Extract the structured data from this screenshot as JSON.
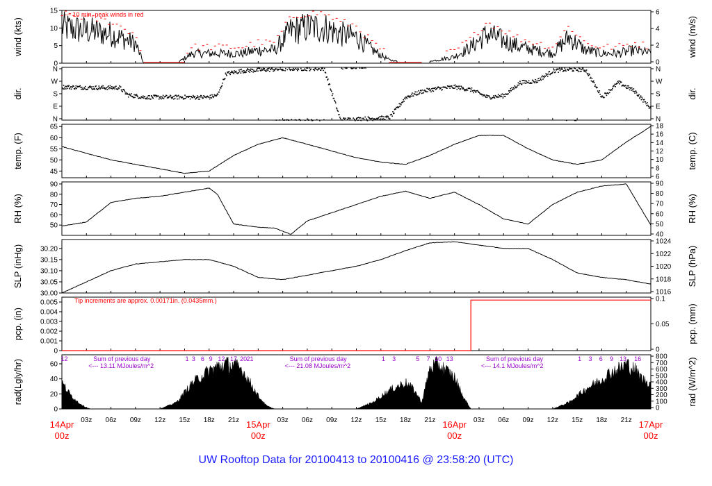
{
  "page": {
    "title": "UW Rooftop Data for 20100413  to  20100416 @ 23:58:20  (UTC)",
    "title_color": "#1a1aff"
  },
  "time_axis": {
    "hour_ticks": [
      "03z",
      "06z",
      "09z",
      "12z",
      "15z",
      "18z",
      "21z",
      "03z",
      "06z",
      "09z",
      "12z",
      "15z",
      "18z",
      "21z",
      "03z",
      "06z",
      "09z",
      "12z",
      "15z",
      "18z",
      "21z"
    ],
    "day_labels": [
      {
        "date": "14Apr",
        "hour": "00z"
      },
      {
        "date": "15Apr",
        "hour": "00z"
      },
      {
        "date": "16Apr",
        "hour": "00z"
      },
      {
        "date": "17Apr",
        "hour": "00z"
      }
    ],
    "day_label_color": "#ff0000"
  },
  "chart_data": [
    {
      "type": "line",
      "id": "wind",
      "ylabel_left": "wind (kts)",
      "ylabel_right": "wind (m/s)",
      "yticks_left": [
        0,
        5,
        10,
        15
      ],
      "yticks_right": [
        0,
        2,
        4,
        6
      ],
      "ylim": [
        0,
        15
      ],
      "annotation": "--- 10 min. peak winds in red",
      "annotation_color": "#ff0000",
      "x_hours": [
        0,
        3,
        6,
        9,
        10,
        12,
        14,
        16,
        18,
        20,
        22,
        24,
        26,
        28,
        30,
        32,
        34,
        36,
        38,
        40,
        42,
        44,
        46,
        48,
        50,
        52,
        54,
        56,
        58,
        60,
        62,
        64,
        66,
        68,
        70,
        72
      ],
      "values": [
        11,
        10,
        9,
        6,
        0,
        0,
        0,
        3,
        3,
        3,
        3,
        4,
        4,
        10,
        11,
        11,
        9,
        8,
        4,
        1,
        0,
        0,
        1,
        2,
        5,
        9,
        7,
        5,
        4,
        3,
        8,
        4,
        3,
        3,
        4,
        3
      ],
      "series_color": "#000000",
      "peak_color": "#ff0000"
    },
    {
      "type": "scatter",
      "id": "dir",
      "ylabel_left": "dir.",
      "ylabel_right": "dir.",
      "yticks_left": [
        "N",
        "E",
        "S",
        "W",
        "N"
      ],
      "yticks_right": [
        "N",
        "E",
        "S",
        "W",
        "N"
      ],
      "ylim": [
        0,
        360
      ],
      "x_hours": [
        0,
        4,
        7,
        8,
        10,
        12,
        14,
        16,
        18,
        19,
        20,
        21,
        22,
        24,
        26,
        28,
        30,
        32,
        34,
        36,
        38,
        40,
        42,
        44,
        46,
        48,
        50,
        52,
        54,
        56,
        58,
        60,
        62,
        64,
        66,
        68,
        70,
        72
      ],
      "values": [
        230,
        225,
        225,
        175,
        160,
        160,
        160,
        160,
        160,
        175,
        320,
        330,
        340,
        345,
        350,
        355,
        355,
        355,
        5,
        10,
        15,
        20,
        160,
        200,
        220,
        230,
        210,
        160,
        170,
        260,
        270,
        340,
        350,
        345,
        160,
        260,
        200,
        80
      ]
    },
    {
      "type": "line",
      "id": "temp",
      "ylabel_left": "temp. (F)",
      "ylabel_right": "temp. (C)",
      "yticks_left": [
        45,
        50,
        55,
        60,
        65
      ],
      "yticks_right": [
        6,
        8,
        10,
        12,
        14,
        16,
        18
      ],
      "ylim": [
        42,
        66
      ],
      "x_hours": [
        0,
        3,
        6,
        9,
        12,
        15,
        18,
        21,
        24,
        27,
        30,
        33,
        36,
        39,
        42,
        45,
        48,
        51,
        54,
        57,
        60,
        63,
        66,
        69,
        72
      ],
      "values": [
        56,
        53,
        50,
        48,
        46,
        44,
        45,
        52,
        57,
        60,
        57,
        54,
        51,
        49,
        48,
        52,
        57,
        61,
        61,
        55,
        50,
        48,
        50,
        58,
        65
      ],
      "series_color": "#000000"
    },
    {
      "type": "line",
      "id": "rh",
      "ylabel_left": "RH (%)",
      "ylabel_right": "RH (%)",
      "yticks_left": [
        50,
        60,
        70,
        80,
        90
      ],
      "yticks_right": [
        40,
        50,
        60,
        70,
        80,
        90
      ],
      "ylim": [
        40,
        92
      ],
      "x_hours": [
        0,
        3,
        6,
        9,
        12,
        15,
        18,
        19,
        21,
        24,
        26,
        28,
        30,
        33,
        36,
        39,
        42,
        45,
        48,
        51,
        54,
        57,
        60,
        61,
        63,
        66,
        69,
        72
      ],
      "values": [
        49,
        53,
        72,
        76,
        78,
        82,
        86,
        80,
        51,
        48,
        47,
        41,
        54,
        62,
        70,
        78,
        83,
        76,
        82,
        70,
        56,
        51,
        70,
        74,
        82,
        88,
        90,
        50
      ],
      "series_color": "#000000"
    },
    {
      "type": "line",
      "id": "slp",
      "ylabel_left": "SLP (inHg)",
      "ylabel_right": "SLP (hPa)",
      "yticks_left": [
        "30.00",
        "30.05",
        "30.10",
        "30.15",
        "30.20"
      ],
      "yticks_right": [
        1016,
        1018,
        1020,
        1022,
        1024
      ],
      "ylim": [
        30.0,
        30.24
      ],
      "x_hours": [
        0,
        3,
        6,
        9,
        12,
        15,
        18,
        21,
        24,
        27,
        30,
        33,
        36,
        39,
        42,
        45,
        48,
        51,
        54,
        57,
        60,
        63,
        66,
        69,
        72
      ],
      "values": [
        30.0,
        30.05,
        30.1,
        30.13,
        30.14,
        30.15,
        30.15,
        30.12,
        30.07,
        30.06,
        30.08,
        30.1,
        30.12,
        30.15,
        30.19,
        30.225,
        30.23,
        30.215,
        30.2,
        30.2,
        30.15,
        30.09,
        30.07,
        30.06,
        30.04
      ],
      "series_color": "#000000"
    },
    {
      "type": "line",
      "id": "pcp",
      "ylabel_left": "pcp. (in)",
      "ylabel_right": "pcp. (mm)",
      "yticks_left": [
        "0",
        "0.001",
        "0.002",
        "0.003",
        "0.004",
        "0.005"
      ],
      "yticks_right": [
        "0",
        "0.05",
        "0.1"
      ],
      "ylim": [
        0,
        0.0055
      ],
      "annotation": "Tip increments are approx. 0.00171in. (0.0435mm.)",
      "annotation_color": "#ff0000",
      "x_hours": [
        0,
        50,
        50,
        72
      ],
      "values": [
        0,
        0,
        0.0052,
        0.0052
      ],
      "series_color": "#ff0000"
    },
    {
      "type": "area",
      "id": "rad",
      "ylabel_left": "rad(Lgly/hr)",
      "ylabel_right": "rad (W/m^2)",
      "yticks_left": [
        0,
        20,
        40,
        60
      ],
      "yticks_right": [
        0,
        100,
        200,
        300,
        400,
        500,
        600,
        700,
        800
      ],
      "ylim": [
        0,
        72
      ],
      "hour_labels_color": "#9900cc",
      "hour_labels": [
        {
          "text": "12",
          "x": 0.3
        },
        {
          "text": "1",
          "x": 15.3
        },
        {
          "text": "3",
          "x": 16.1
        },
        {
          "text": "6",
          "x": 17.2
        },
        {
          "text": "9",
          "x": 18.2
        },
        {
          "text": "12",
          "x": 19.5
        },
        {
          "text": "17",
          "x": 21.0
        },
        {
          "text": "20",
          "x": 22.2
        },
        {
          "text": "21",
          "x": 23.0
        },
        {
          "text": "1",
          "x": 39.3
        },
        {
          "text": "3",
          "x": 40.6
        },
        {
          "text": "5",
          "x": 43.5
        },
        {
          "text": "7",
          "x": 44.8
        },
        {
          "text": "10",
          "x": 46.0
        },
        {
          "text": "13",
          "x": 47.4
        },
        {
          "text": "1",
          "x": 63.3
        },
        {
          "text": "3",
          "x": 64.6
        },
        {
          "text": "6",
          "x": 65.9
        },
        {
          "text": "9",
          "x": 67.2
        },
        {
          "text": "13",
          "x": 68.6
        },
        {
          "text": "16",
          "x": 70.4
        }
      ],
      "daily_sums": [
        {
          "line1": "Sum of previous day",
          "line2": "<--- 13.11 MJoules/m^2",
          "x": 3.0
        },
        {
          "line1": "Sum of previous day",
          "line2": "<--- 21.08 MJoules/m^2",
          "x": 27.0
        },
        {
          "line1": "Sum of previous day",
          "line2": "<--- 14.1 MJoules/m^2",
          "x": 51.0
        }
      ],
      "x_hours": [
        0,
        1,
        2,
        3,
        3.5,
        12,
        14,
        16,
        18,
        19,
        20,
        21,
        22,
        23,
        24,
        25,
        26,
        36,
        38,
        40,
        42,
        43,
        44,
        45,
        46,
        47,
        48,
        49,
        50,
        60,
        62,
        64,
        66,
        67,
        68,
        69,
        70,
        71,
        72
      ],
      "values": [
        40,
        22,
        10,
        2,
        0,
        0,
        10,
        40,
        58,
        64,
        68,
        66,
        60,
        40,
        20,
        5,
        0,
        0,
        10,
        28,
        40,
        30,
        10,
        62,
        68,
        58,
        48,
        20,
        0,
        0,
        10,
        30,
        45,
        55,
        60,
        68,
        60,
        45,
        38
      ],
      "series_color": "#000000"
    }
  ]
}
